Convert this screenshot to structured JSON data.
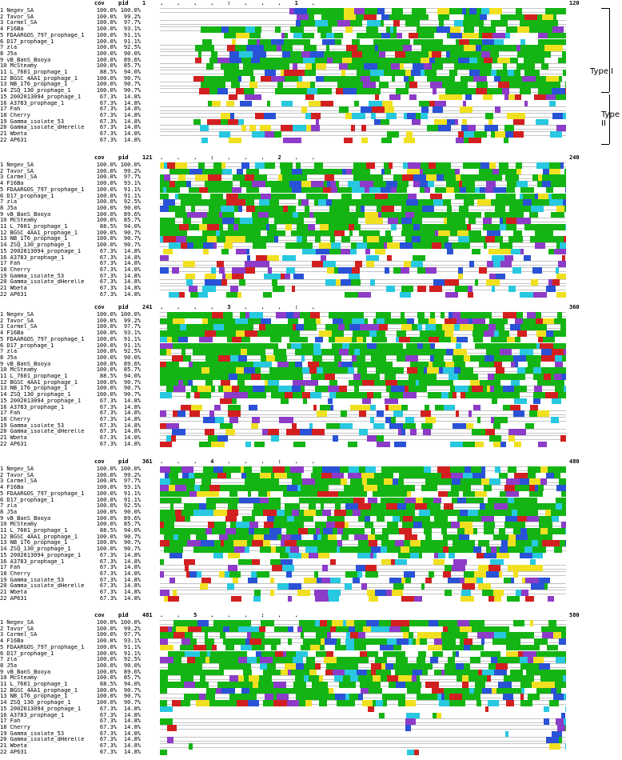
{
  "header": {
    "cov_label": "cov",
    "pid_label": "pid"
  },
  "blocks": [
    {
      "start": "1",
      "end": "120",
      "ruler": ".    .    .    .    :    .    .    .    1    ."
    },
    {
      "start": "121",
      "end": "240",
      "ruler": ".    .    .    :    .    .    .    2    .    ."
    },
    {
      "start": "241",
      "end": "360",
      "ruler": ".    .    .    .    3    .    .    .    :    ."
    },
    {
      "start": "361",
      "end": "480",
      "ruler": ".    .    .    4    .    .    .    :    .    ."
    },
    {
      "start": "481",
      "end": "580",
      "ruler": ".    .    5    .    .    .    :    .    ."
    }
  ],
  "sequences": [
    {
      "name": "1 Negev_SA",
      "cov": "100.0%",
      "pid": "100.0%"
    },
    {
      "name": "2 Tavor_SA",
      "cov": "100.0%",
      "pid": "99.2%"
    },
    {
      "name": "3 Carmel_SA",
      "cov": "100.0%",
      "pid": "97.7%"
    },
    {
      "name": "4 F16Ba",
      "cov": "100.0%",
      "pid": "93.1%"
    },
    {
      "name": "5 FDAARGOS_797_prophage_1",
      "cov": "100.0%",
      "pid": "91.1%"
    },
    {
      "name": "6 D17_prophage_1",
      "cov": "100.0%",
      "pid": "91.1%"
    },
    {
      "name": "7 zla",
      "cov": "100.0%",
      "pid": "92.5%"
    },
    {
      "name": "8 J5a",
      "cov": "100.0%",
      "pid": "90.0%"
    },
    {
      "name": "9 vB_BanS_Booya",
      "cov": "100.0%",
      "pid": "89.6%"
    },
    {
      "name": "10 McSteamy",
      "cov": "100.0%",
      "pid": "85.7%"
    },
    {
      "name": "11 L_7601_prophage_1",
      "cov": "88.5%",
      "pid": "94.0%"
    },
    {
      "name": "12 BGSC_4AA1_prophage_1",
      "cov": "100.0%",
      "pid": "90.7%"
    },
    {
      "name": "13 NB_176_prophage_1",
      "cov": "100.0%",
      "pid": "90.7%"
    },
    {
      "name": "14 ZSQ_130_prophage_1",
      "cov": "100.0%",
      "pid": "90.7%"
    },
    {
      "name": "15 2002013094_prophage_1",
      "cov": "67.3%",
      "pid": "14.8%"
    },
    {
      "name": "16 A3783_prophage_1",
      "cov": "67.3%",
      "pid": "14.8%"
    },
    {
      "name": "17 Fah",
      "cov": "67.3%",
      "pid": "14.8%"
    },
    {
      "name": "18 Cherry",
      "cov": "67.3%",
      "pid": "14.8%"
    },
    {
      "name": "19 Gamma_isolate_53",
      "cov": "67.3%",
      "pid": "14.8%"
    },
    {
      "name": "20 Gamma_isolate_dHerelle",
      "cov": "67.3%",
      "pid": "14.8%"
    },
    {
      "name": "21 Wbeta",
      "cov": "67.3%",
      "pid": "14.8%"
    },
    {
      "name": "22 AP631",
      "cov": "67.3%",
      "pid": "14.8%"
    }
  ],
  "annotations": {
    "type1": "Type I",
    "type2": "Type II"
  }
}
